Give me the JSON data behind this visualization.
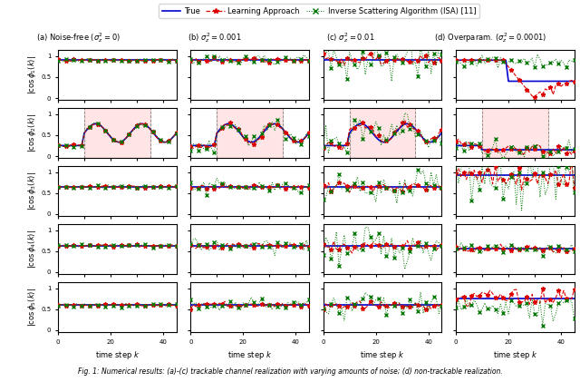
{
  "title": "Fig. 1: Numerical results: (a)-(c) trackable channel realization with varying amounts of noise; (d) non-trackable realization.",
  "col_titles": [
    "(a) Noise-free ($\\sigma_z^2 = 0$)",
    "(b) $\\sigma_z^2 = 0.001$",
    "(c) $\\sigma_z^2 = 0.01$",
    "(d) Overparam. ($\\sigma_z^2 = 0.0001$)"
  ],
  "row_labels": [
    "$|\\cos\\phi_1(k)|$",
    "$|\\cos\\phi_2(k)|$",
    "$|\\cos\\phi_3(k)|$",
    "$|\\cos\\phi_4(k)|$",
    "$|\\cos\\phi_5(k)|$"
  ],
  "n_steps": 46,
  "true_color": "#0000cc",
  "learn_color": "#dd0000",
  "isa_color": "#007700",
  "noise_levels": [
    0,
    0.001,
    0.01,
    0.0001
  ],
  "pink_region": [
    10,
    35
  ],
  "pink_alpha": 0.3,
  "pink_color": "#ffaaaa",
  "true_row0_trackable": 0.9,
  "true_row2_trackable": 0.65,
  "true_row3_trackable": 0.63,
  "true_row4_trackable": 0.6,
  "true_row1_before": 0.25,
  "true_row1_after_mean": 0.55,
  "true_row1_after_amp": 0.22
}
